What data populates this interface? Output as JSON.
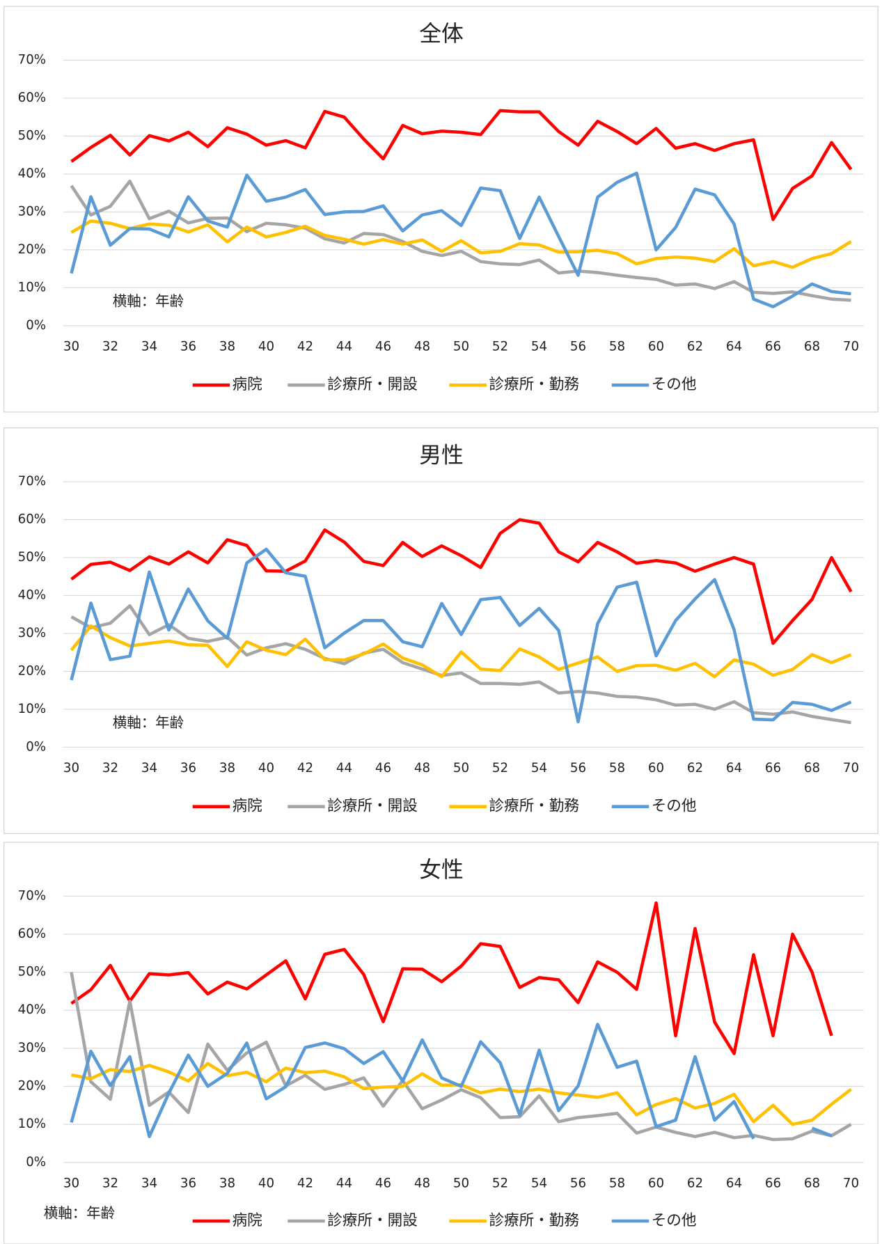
{
  "chart_data": [
    {
      "type": "line",
      "title": "全体",
      "annotation": "横軸：年齢",
      "legend": "bottom",
      "grid": true,
      "x": [
        30,
        31,
        32,
        33,
        34,
        35,
        36,
        37,
        38,
        39,
        40,
        41,
        42,
        43,
        44,
        45,
        46,
        47,
        48,
        49,
        50,
        51,
        52,
        53,
        54,
        55,
        56,
        57,
        58,
        59,
        60,
        61,
        62,
        63,
        64,
        65,
        66,
        67,
        68,
        69,
        70
      ],
      "xlim": [
        30,
        70
      ],
      "xticks": [
        30,
        32,
        34,
        36,
        38,
        40,
        42,
        44,
        46,
        48,
        50,
        52,
        54,
        56,
        58,
        60,
        62,
        64,
        66,
        68,
        70
      ],
      "ylim": [
        0,
        70
      ],
      "yticks": [
        {
          "value": 0,
          "label": "0%"
        },
        {
          "value": 10,
          "label": "10%"
        },
        {
          "value": 20,
          "label": "20%"
        },
        {
          "value": 30,
          "label": "30%"
        },
        {
          "value": 40,
          "label": "40%"
        },
        {
          "value": 50,
          "label": "50%"
        },
        {
          "value": 60,
          "label": "60%"
        },
        {
          "value": 70,
          "label": "70%"
        }
      ],
      "series": [
        {
          "name": "病院",
          "color": "#ff0000",
          "values": [
            43.3,
            47,
            50.2,
            45,
            50.1,
            48.7,
            51,
            47.2,
            52.2,
            50.5,
            47.6,
            48.8,
            46.9,
            56.5,
            55,
            49.2,
            44,
            52.8,
            50.6,
            51.3,
            51,
            50.4,
            56.7,
            56.4,
            56.4,
            51.2,
            47.6,
            53.9,
            51.2,
            48,
            52,
            46.8,
            48,
            46.2,
            48,
            49,
            28,
            36.2,
            39.5,
            48.3,
            41.2
          ]
        },
        {
          "name": "診療所・開設",
          "color": "#a5a5a5",
          "values": [
            36.9,
            29.2,
            31.5,
            38.1,
            28.2,
            30.2,
            27.1,
            28.3,
            28.4,
            24.8,
            27,
            26.6,
            25.7,
            22.9,
            21.8,
            24.3,
            24,
            22.2,
            19.6,
            18.5,
            19.6,
            16.9,
            16.3,
            16.1,
            17.3,
            13.9,
            14.4,
            14,
            13.3,
            12.7,
            12.2,
            10.7,
            11,
            9.8,
            11.6,
            8.8,
            8.5,
            8.9,
            7.9,
            7,
            6.7
          ]
        },
        {
          "name": "診療所・勤務",
          "color": "#ffc000",
          "values": [
            24.6,
            27.6,
            27,
            25.6,
            26.8,
            26.5,
            24.7,
            26.6,
            22.1,
            26,
            23.4,
            24.6,
            26.2,
            23.8,
            22.8,
            21.5,
            22.7,
            21.5,
            22.6,
            19.6,
            22.4,
            19.2,
            19.6,
            21.6,
            21.3,
            19.4,
            19.5,
            19.9,
            19,
            16.3,
            17.7,
            18.1,
            17.8,
            16.9,
            20.3,
            15.8,
            16.9,
            15.4,
            17.7,
            19,
            22.2
          ]
        },
        {
          "name": "その他",
          "color": "#5b9bd5",
          "values": [
            13.8,
            34,
            21.2,
            25.6,
            25.5,
            23.4,
            34,
            27.6,
            26,
            39.7,
            32.8,
            33.9,
            35.9,
            29.3,
            30,
            30.1,
            31.6,
            25,
            29.2,
            30.3,
            26.4,
            36.3,
            35.6,
            23,
            33.9,
            23.5,
            13.3,
            33.9,
            37.8,
            40.2,
            20,
            25.9,
            36,
            34.5,
            26.8,
            7,
            5,
            7.8,
            11,
            9,
            8.4
          ]
        }
      ]
    },
    {
      "type": "line",
      "title": "男性",
      "annotation": "横軸：年齢",
      "legend": "bottom",
      "grid": true,
      "x": [
        30,
        31,
        32,
        33,
        34,
        35,
        36,
        37,
        38,
        39,
        40,
        41,
        42,
        43,
        44,
        45,
        46,
        47,
        48,
        49,
        50,
        51,
        52,
        53,
        54,
        55,
        56,
        57,
        58,
        59,
        60,
        61,
        62,
        63,
        64,
        65,
        66,
        67,
        68,
        69,
        70
      ],
      "xlim": [
        30,
        70
      ],
      "xticks": [
        30,
        32,
        34,
        36,
        38,
        40,
        42,
        44,
        46,
        48,
        50,
        52,
        54,
        56,
        58,
        60,
        62,
        64,
        66,
        68,
        70
      ],
      "ylim": [
        0,
        70
      ],
      "yticks": [
        {
          "value": 0,
          "label": "0%"
        },
        {
          "value": 10,
          "label": "10%"
        },
        {
          "value": 20,
          "label": "20%"
        },
        {
          "value": 30,
          "label": "30%"
        },
        {
          "value": 40,
          "label": "40%"
        },
        {
          "value": 50,
          "label": "50%"
        },
        {
          "value": 60,
          "label": "60%"
        },
        {
          "value": 70,
          "label": "70%"
        }
      ],
      "series": [
        {
          "name": "病院",
          "color": "#ff0000",
          "values": [
            44.3,
            48.2,
            48.8,
            46.6,
            50.2,
            48.3,
            51.5,
            48.6,
            54.7,
            53.2,
            46.5,
            46.4,
            49.1,
            57.3,
            54.1,
            49,
            47.9,
            54,
            50.3,
            53.1,
            50.5,
            47.4,
            56.4,
            60,
            59.1,
            51.5,
            48.9,
            54,
            51.5,
            48.5,
            49.2,
            48.6,
            46.4,
            48.3,
            50,
            48.3,
            27.4,
            33.4,
            39,
            50,
            41
          ]
        },
        {
          "name": "診療所・開設",
          "color": "#a5a5a5",
          "values": [
            34.4,
            31.5,
            32.7,
            37.3,
            29.7,
            32.3,
            28.7,
            27.9,
            29,
            24.3,
            26.2,
            27.3,
            25.8,
            23.4,
            22,
            24.8,
            25.8,
            22.3,
            20.6,
            18.9,
            19.6,
            16.8,
            16.8,
            16.6,
            17.2,
            14.3,
            14.7,
            14.3,
            13.4,
            13.2,
            12.5,
            11.1,
            11.3,
            10,
            12,
            9.1,
            8.7,
            9.3,
            8.1,
            7.3,
            6.5
          ]
        },
        {
          "name": "診療所・勤務",
          "color": "#ffc000",
          "values": [
            25.6,
            32,
            28.9,
            26.7,
            27.4,
            28,
            27,
            26.9,
            21.3,
            27.8,
            25.6,
            24.4,
            28.5,
            23.1,
            23,
            24.6,
            27.2,
            23.5,
            21.7,
            18.6,
            25.1,
            20.6,
            20.2,
            25.9,
            23.8,
            20.5,
            22.2,
            23.8,
            20,
            21.5,
            21.6,
            20.3,
            22.1,
            18.6,
            23,
            21.9,
            19,
            20.5,
            24.4,
            22.3,
            24.4
          ]
        },
        {
          "name": "その他",
          "color": "#5b9bd5",
          "values": [
            17.7,
            38,
            23.1,
            24,
            46.2,
            30.9,
            41.7,
            33.3,
            28.7,
            48.6,
            52.2,
            46,
            45.1,
            26.2,
            30.1,
            33.4,
            33.4,
            27.8,
            26.5,
            37.9,
            29.7,
            38.9,
            39.5,
            32.1,
            36.6,
            30.8,
            6.7,
            32.6,
            42.2,
            43.5,
            24.1,
            33.4,
            39.1,
            44.2,
            31,
            7.4,
            7.2,
            11.8,
            11.3,
            9.7,
            11.9
          ]
        }
      ]
    },
    {
      "type": "line",
      "title": "女性",
      "annotation": "横軸：年齢",
      "legend": "bottom",
      "grid": true,
      "x": [
        30,
        31,
        32,
        33,
        34,
        35,
        36,
        37,
        38,
        39,
        40,
        41,
        42,
        43,
        44,
        45,
        46,
        47,
        48,
        49,
        50,
        51,
        52,
        53,
        54,
        55,
        56,
        57,
        58,
        59,
        60,
        61,
        62,
        63,
        64,
        65,
        66,
        67,
        68,
        69,
        70
      ],
      "xlim": [
        30,
        70
      ],
      "xticks": [
        30,
        32,
        34,
        36,
        38,
        40,
        42,
        44,
        46,
        48,
        50,
        52,
        54,
        56,
        58,
        60,
        62,
        64,
        66,
        68,
        70
      ],
      "ylim": [
        0,
        70
      ],
      "yticks": [
        {
          "value": 0,
          "label": "0%"
        },
        {
          "value": 10,
          "label": "10%"
        },
        {
          "value": 20,
          "label": "20%"
        },
        {
          "value": 30,
          "label": "30%"
        },
        {
          "value": 40,
          "label": "40%"
        },
        {
          "value": 50,
          "label": "50%"
        },
        {
          "value": 60,
          "label": "60%"
        },
        {
          "value": 70,
          "label": "70%"
        }
      ],
      "series": [
        {
          "name": "病院",
          "color": "#ff0000",
          "values": [
            41.8,
            45.4,
            51.8,
            42.4,
            49.6,
            49.3,
            49.9,
            44.3,
            47.4,
            45.6,
            49.3,
            53,
            43,
            54.7,
            56,
            49.4,
            37,
            50.9,
            50.8,
            47.5,
            51.6,
            57.5,
            56.8,
            46,
            48.6,
            48,
            42,
            52.7,
            50,
            45.5,
            68.2,
            33.3,
            61.5,
            36.9,
            28.6,
            54.6,
            33.3,
            60,
            50,
            33.3,
            null
          ]
        },
        {
          "name": "診療所・開設",
          "color": "#a5a5a5",
          "values": [
            50,
            21.2,
            16.6,
            42.4,
            15,
            18.5,
            13.1,
            31.1,
            24.2,
            28.8,
            31.6,
            20.1,
            22.9,
            19.2,
            20.5,
            22.2,
            14.8,
            21.5,
            14.1,
            16.4,
            19.1,
            17,
            11.8,
            12,
            17.5,
            10.7,
            11.8,
            12.3,
            12.9,
            7.7,
            9.3,
            7.9,
            6.8,
            7.9,
            6.5,
            7.1,
            6,
            6.2,
            8.2,
            7,
            10
          ]
        },
        {
          "name": "診療所・勤務",
          "color": "#ffc000",
          "values": [
            23,
            22,
            24.4,
            23.9,
            25.5,
            23.8,
            21.4,
            26,
            22.8,
            23.7,
            21.2,
            24.8,
            23.6,
            24,
            22.5,
            19.4,
            19.8,
            20,
            23.3,
            20.3,
            20.4,
            18.3,
            19.3,
            18.6,
            19.3,
            18.3,
            17.7,
            17.1,
            18.3,
            12.5,
            15.2,
            16.8,
            14.3,
            15.5,
            17.9,
            10.7,
            15,
            10,
            11.1,
            15.3,
            19.2
          ]
        },
        {
          "name": "その他",
          "color": "#5b9bd5",
          "values": [
            10.5,
            29.2,
            20.2,
            27.8,
            6.8,
            18.2,
            28.2,
            20,
            23.4,
            31.4,
            16.7,
            19.9,
            30.2,
            31.4,
            29.9,
            26,
            29.1,
            21.4,
            32.2,
            22.2,
            20,
            31.7,
            26.2,
            12.5,
            29.5,
            13.6,
            20.1,
            36.3,
            25,
            26.6,
            9.4,
            11.1,
            27.8,
            11.1,
            16,
            6.2,
            null,
            null,
            9,
            7,
            null
          ]
        }
      ]
    }
  ]
}
